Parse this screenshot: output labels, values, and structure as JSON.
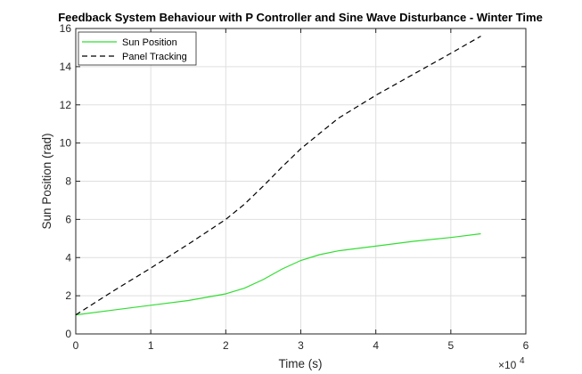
{
  "chart_data": {
    "type": "line",
    "title": "Feedback System Behaviour with P Controller and Sine Wave Disturbance - Winter Time",
    "xlabel": "Time (s)",
    "ylabel": "Sun Position (rad)",
    "x_exponent_label": "×10",
    "x_exponent_power": "4",
    "xlim": [
      0,
      60000
    ],
    "ylim": [
      0,
      16
    ],
    "xticks": [
      0,
      10000,
      20000,
      30000,
      40000,
      50000,
      60000
    ],
    "xtick_labels": [
      "0",
      "1",
      "2",
      "3",
      "4",
      "5",
      "6"
    ],
    "yticks": [
      0,
      2,
      4,
      6,
      8,
      10,
      12,
      14,
      16
    ],
    "ytick_labels": [
      "0",
      "2",
      "4",
      "6",
      "8",
      "10",
      "12",
      "14",
      "16"
    ],
    "grid": true,
    "legend_position": "top-left",
    "series": [
      {
        "name": "Sun Position",
        "color": "#33dd33",
        "dash": "solid",
        "x": [
          0,
          5000,
          10000,
          15000,
          20000,
          22500,
          25000,
          27500,
          30000,
          32500,
          35000,
          40000,
          45000,
          50000,
          54000
        ],
        "y": [
          1.0,
          1.25,
          1.5,
          1.75,
          2.1,
          2.4,
          2.85,
          3.4,
          3.85,
          4.15,
          4.35,
          4.6,
          4.85,
          5.05,
          5.25
        ]
      },
      {
        "name": "Panel Tracking",
        "color": "#000000",
        "dash": "dashed",
        "x": [
          0,
          5000,
          10000,
          15000,
          20000,
          22500,
          25000,
          27500,
          30000,
          32500,
          35000,
          40000,
          45000,
          50000,
          54000
        ],
        "y": [
          1.0,
          2.25,
          3.45,
          4.7,
          6.0,
          6.8,
          7.75,
          8.75,
          9.7,
          10.5,
          11.3,
          12.5,
          13.6,
          14.7,
          15.6
        ]
      }
    ]
  }
}
